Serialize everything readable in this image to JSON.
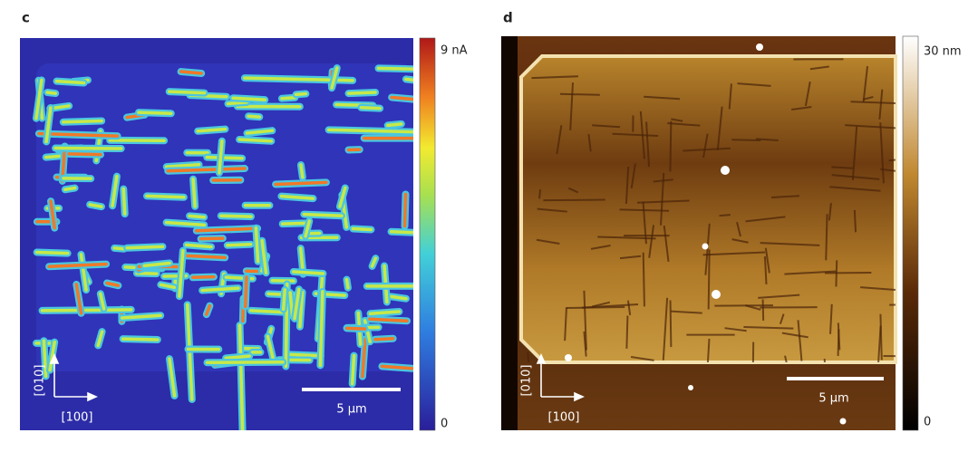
{
  "panels": [
    {
      "label": "c",
      "colorbar": {
        "max_label": "9 nA",
        "min_label": "0"
      },
      "axes": {
        "vertical": "[010]",
        "horizontal": "[100]"
      },
      "scale_bar": "5 μm"
    },
    {
      "label": "d",
      "colorbar": {
        "max_label": "30 nm",
        "min_label": "0"
      },
      "axes": {
        "vertical": "[010]",
        "horizontal": "[100]"
      },
      "scale_bar": "5 μm"
    }
  ]
}
